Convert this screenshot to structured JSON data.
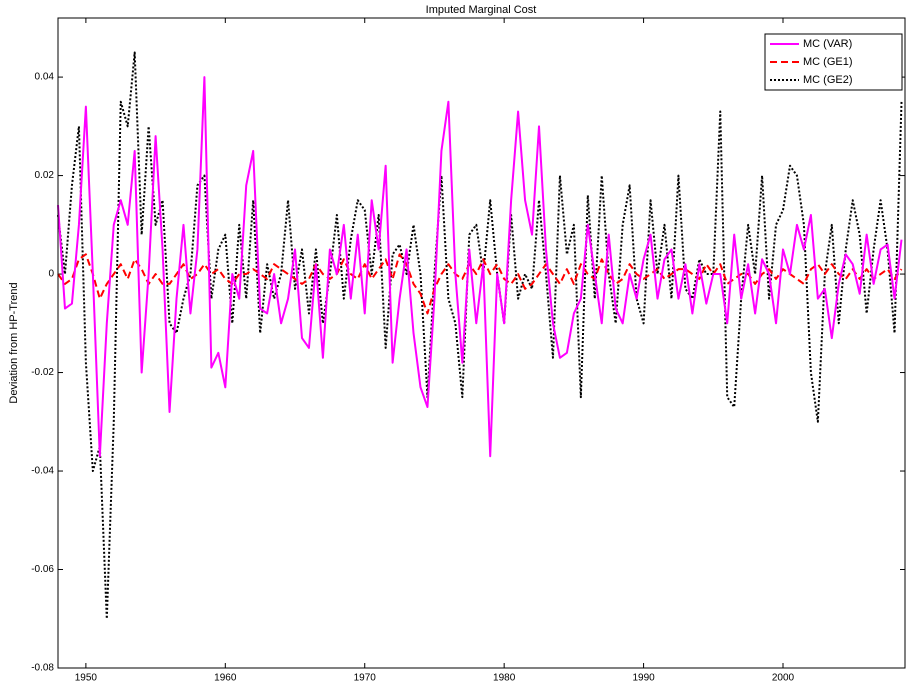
{
  "chart_data": {
    "type": "line",
    "title": "Imputed Marginal Cost",
    "ylabel": "Deviation from HP-Trend",
    "x": [
      1948,
      1948.5,
      1949,
      1949.5,
      1950,
      1950.5,
      1951,
      1951.5,
      1952,
      1952.5,
      1953,
      1953.5,
      1954,
      1954.5,
      1955,
      1955.5,
      1956,
      1956.5,
      1957,
      1957.5,
      1958,
      1958.5,
      1959,
      1959.5,
      1960,
      1960.5,
      1961,
      1961.5,
      1962,
      1962.5,
      1963,
      1963.5,
      1964,
      1964.5,
      1965,
      1965.5,
      1966,
      1966.5,
      1967,
      1967.5,
      1968,
      1968.5,
      1969,
      1969.5,
      1970,
      1970.5,
      1971,
      1971.5,
      1972,
      1972.5,
      1973,
      1973.5,
      1974,
      1974.5,
      1975,
      1975.5,
      1976,
      1976.5,
      1977,
      1977.5,
      1978,
      1978.5,
      1979,
      1979.5,
      1980,
      1980.5,
      1981,
      1981.5,
      1982,
      1982.5,
      1983,
      1983.5,
      1984,
      1984.5,
      1985,
      1985.5,
      1986,
      1986.5,
      1987,
      1987.5,
      1988,
      1988.5,
      1989,
      1989.5,
      1990,
      1990.5,
      1991,
      1991.5,
      1992,
      1992.5,
      1993,
      1993.5,
      1994,
      1994.5,
      1995,
      1995.5,
      1996,
      1996.5,
      1997,
      1997.5,
      1998,
      1998.5,
      1999,
      1999.5,
      2000,
      2000.5,
      2001,
      2001.5,
      2002,
      2002.5,
      2003,
      2003.5,
      2004,
      2004.5,
      2005,
      2005.5,
      2006,
      2006.5,
      2007,
      2007.5,
      2008,
      2008.5
    ],
    "series": [
      {
        "name": "MC (VAR)",
        "color": "#ff00ff",
        "dash": "solid",
        "values": [
          0.014,
          -0.007,
          -0.006,
          0.01,
          0.034,
          0.0,
          -0.037,
          -0.01,
          0.01,
          0.015,
          0.01,
          0.025,
          -0.02,
          0.0,
          0.028,
          0.005,
          -0.028,
          -0.005,
          0.01,
          -0.008,
          0.005,
          0.04,
          -0.019,
          -0.016,
          -0.023,
          0.0,
          -0.005,
          0.018,
          0.025,
          -0.007,
          -0.008,
          0.0,
          -0.01,
          -0.005,
          0.005,
          -0.013,
          -0.015,
          0.002,
          -0.017,
          0.005,
          0.0,
          0.01,
          -0.005,
          0.008,
          -0.008,
          0.015,
          0.005,
          0.022,
          -0.018,
          -0.005,
          0.005,
          -0.012,
          -0.023,
          -0.027,
          -0.005,
          0.025,
          0.035,
          0.0,
          -0.018,
          0.005,
          -0.01,
          0.002,
          -0.037,
          0.0,
          -0.01,
          0.015,
          0.033,
          0.015,
          0.008,
          0.03,
          0.005,
          -0.01,
          -0.017,
          -0.016,
          -0.008,
          -0.005,
          0.01,
          0.0,
          -0.01,
          0.008,
          -0.007,
          -0.01,
          0.0,
          -0.005,
          0.003,
          0.008,
          -0.005,
          0.003,
          0.005,
          -0.005,
          0.002,
          -0.008,
          0.002,
          -0.006,
          0.0,
          0.0,
          -0.01,
          0.008,
          -0.005,
          0.002,
          -0.008,
          0.003,
          0.0,
          -0.01,
          0.005,
          0.0,
          0.01,
          0.005,
          0.012,
          -0.005,
          -0.003,
          -0.013,
          -0.002,
          0.004,
          0.002,
          -0.004,
          0.008,
          -0.002,
          0.005,
          0.006,
          -0.005,
          0.007
        ]
      },
      {
        "name": "MC (GE1)",
        "color": "#ff0000",
        "dash": "dashed",
        "values": [
          0.0,
          -0.002,
          -0.001,
          0.003,
          0.004,
          0.0,
          -0.005,
          -0.002,
          0.0,
          0.002,
          -0.001,
          0.003,
          0.001,
          -0.002,
          0.0,
          -0.002,
          -0.002,
          0.0,
          0.002,
          -0.001,
          0.0,
          0.002,
          0.0,
          0.001,
          -0.001,
          -0.002,
          0.0,
          0.0,
          0.001,
          0.0,
          -0.001,
          0.002,
          0.001,
          0.0,
          -0.001,
          -0.002,
          -0.001,
          0.002,
          0.0,
          -0.001,
          0.0,
          0.003,
          0.0,
          -0.001,
          0.002,
          -0.001,
          0.001,
          0.003,
          -0.001,
          0.004,
          0.002,
          -0.002,
          -0.004,
          -0.008,
          -0.003,
          0.0,
          0.002,
          0.0,
          -0.001,
          0.002,
          0.0,
          0.003,
          0.0,
          0.002,
          -0.001,
          -0.002,
          0.0,
          -0.003,
          -0.002,
          0.0,
          0.002,
          0.0,
          -0.002,
          0.001,
          -0.002,
          0.002,
          0.0,
          -0.001,
          0.003,
          0.0,
          -0.002,
          -0.001,
          0.002,
          0.0,
          -0.001,
          0.0,
          0.001,
          -0.001,
          0.0,
          0.001,
          0.001,
          0.0,
          -0.001,
          0.002,
          0.0,
          0.002,
          -0.002,
          -0.001,
          0.0,
          0.0,
          -0.002,
          0.0,
          0.001,
          -0.001,
          0.001,
          0.0,
          -0.001,
          -0.002,
          0.001,
          0.002,
          0.0,
          0.002,
          0.0,
          -0.001,
          0.001,
          -0.001,
          0.001,
          -0.001,
          0.0,
          0.001,
          -0.001,
          0.001
        ]
      },
      {
        "name": "MC (GE2)",
        "color": "#000000",
        "dash": "dotted",
        "values": [
          0.012,
          0.0,
          0.018,
          0.03,
          -0.018,
          -0.04,
          -0.035,
          -0.07,
          -0.03,
          0.035,
          0.03,
          0.045,
          0.008,
          0.03,
          0.01,
          0.015,
          -0.01,
          -0.012,
          -0.005,
          0.0,
          0.018,
          0.02,
          -0.005,
          0.005,
          0.008,
          -0.01,
          0.01,
          -0.005,
          0.015,
          -0.012,
          0.002,
          -0.005,
          0.0,
          0.015,
          -0.003,
          0.005,
          -0.008,
          0.005,
          -0.01,
          0.0,
          0.012,
          -0.005,
          0.007,
          0.015,
          0.013,
          0.0,
          0.012,
          -0.015,
          0.004,
          0.006,
          0.0,
          0.01,
          0.0,
          -0.025,
          0.0,
          0.02,
          -0.005,
          -0.01,
          -0.025,
          0.008,
          0.01,
          0.0,
          0.015,
          0.0,
          -0.01,
          0.012,
          -0.005,
          0.0,
          -0.003,
          0.015,
          0.0,
          -0.017,
          0.02,
          0.004,
          0.01,
          -0.025,
          0.016,
          -0.005,
          0.02,
          0.0,
          -0.01,
          0.01,
          0.018,
          -0.005,
          -0.01,
          0.015,
          0.0,
          0.01,
          -0.005,
          0.02,
          -0.003,
          -0.005,
          0.003,
          0.0,
          0.0,
          0.033,
          -0.025,
          -0.027,
          -0.005,
          0.01,
          0.0,
          0.02,
          -0.005,
          0.01,
          0.013,
          0.022,
          0.02,
          0.01,
          -0.02,
          -0.03,
          0.0,
          0.01,
          -0.01,
          0.005,
          0.015,
          0.008,
          -0.008,
          0.005,
          0.015,
          0.005,
          -0.012,
          0.035
        ]
      }
    ],
    "xlim": [
      1948,
      2008.75
    ],
    "ylim": [
      -0.08,
      0.052
    ],
    "xticks": [
      1950,
      1960,
      1970,
      1980,
      1990,
      2000
    ],
    "yticks": [
      -0.08,
      -0.06,
      -0.04,
      -0.02,
      0,
      0.02,
      0.04
    ],
    "legend": "top-right"
  }
}
